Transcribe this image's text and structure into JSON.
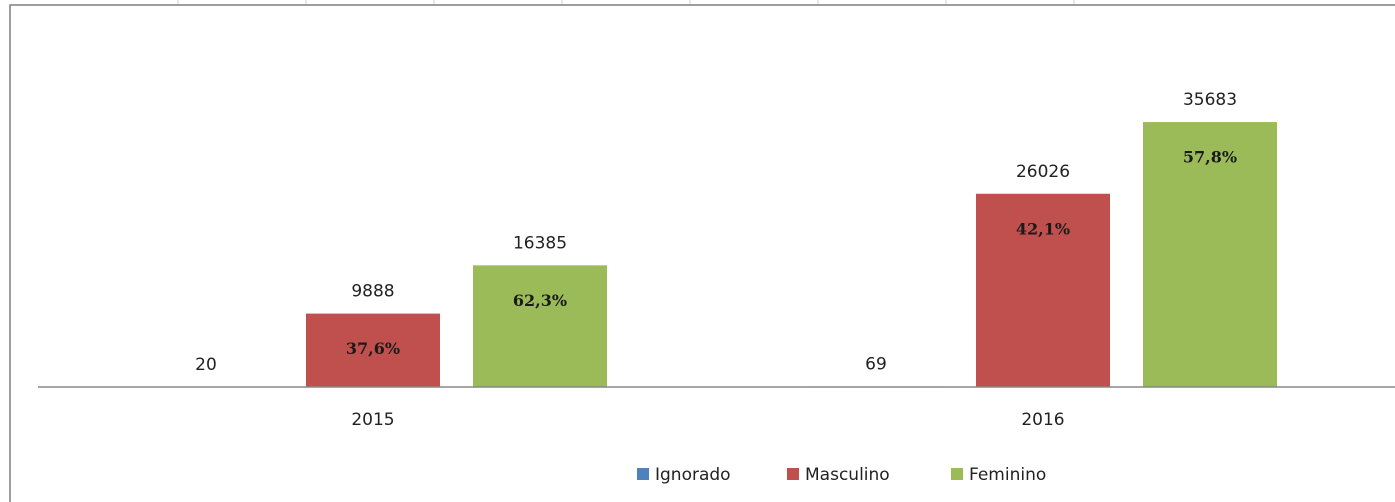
{
  "chart_data": {
    "type": "bar",
    "categories": [
      "2015",
      "2016"
    ],
    "series": [
      {
        "name": "Ignorado",
        "color": "#4f81bd",
        "values": [
          20,
          69
        ],
        "percent_labels": [
          null,
          null
        ]
      },
      {
        "name": "Masculino",
        "color": "#c0504d",
        "values": [
          9888,
          26026
        ],
        "percent_labels": [
          "37,6%",
          "42,1%"
        ]
      },
      {
        "name": "Feminino",
        "color": "#9bbb59",
        "values": [
          16385,
          35683
        ],
        "percent_labels": [
          "62,3%",
          "57,8%"
        ]
      }
    ],
    "ylim": [
      0,
      40000
    ],
    "legend": "bottom"
  }
}
